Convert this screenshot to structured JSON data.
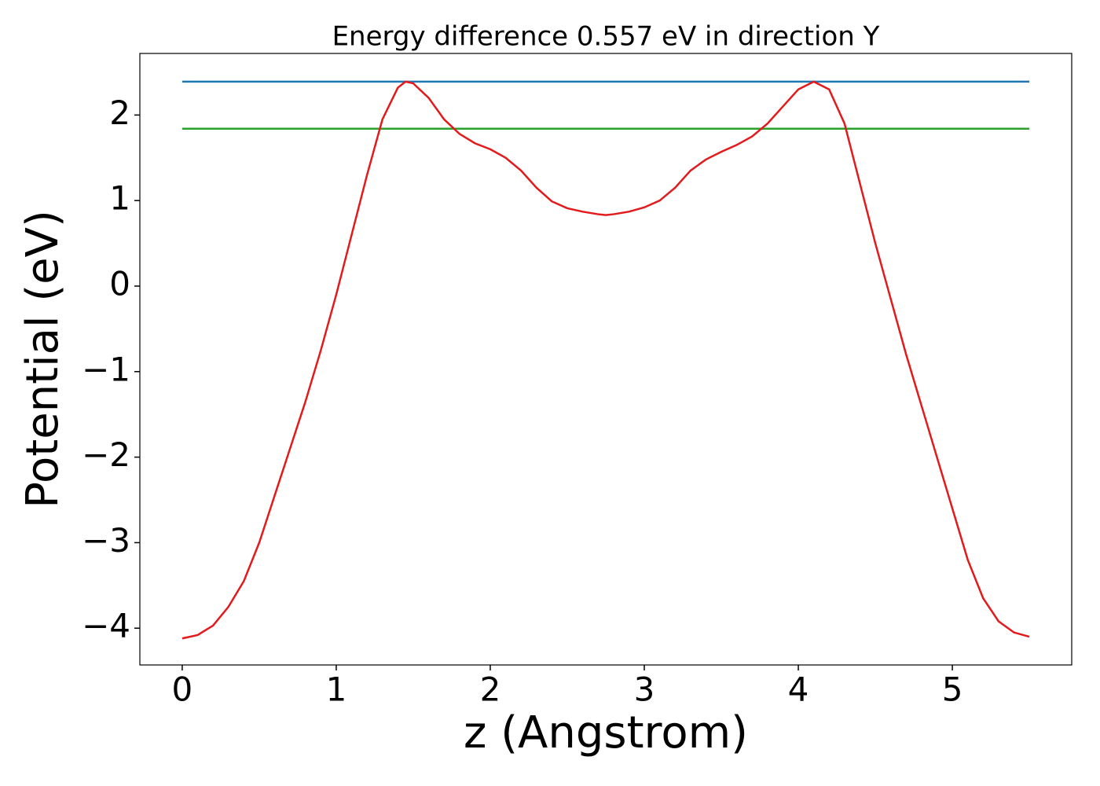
{
  "chart_data": {
    "type": "line",
    "title": "Energy difference 0.557 eV in direction Y",
    "x_label": "z (Angstrom)",
    "y_label": "Potential (eV)",
    "xlim": [
      -0.275,
      5.775
    ],
    "ylim": [
      -4.43,
      2.72
    ],
    "xticks": [
      0,
      1,
      2,
      3,
      4,
      5
    ],
    "yticks": [
      {
        "value": -4,
        "label": "−4"
      },
      {
        "value": -3,
        "label": "−3"
      },
      {
        "value": -2,
        "label": "−2"
      },
      {
        "value": -1,
        "label": "−1"
      },
      0,
      1,
      2
    ],
    "grid": false,
    "series": [
      {
        "color": "#1f77b4",
        "x": [
          0,
          5.5
        ],
        "values": [
          2.39,
          2.39
        ]
      },
      {
        "color": "#2ca02c",
        "x": [
          0,
          5.5
        ],
        "values": [
          1.84,
          1.84
        ]
      },
      {
        "color": "#e31a1c",
        "x": [
          0,
          0.1,
          0.2,
          0.3,
          0.4,
          0.5,
          0.6,
          0.7,
          0.8,
          0.9,
          1.0,
          1.1,
          1.2,
          1.3,
          1.4,
          1.45,
          1.5,
          1.6,
          1.7,
          1.8,
          1.9,
          2.0,
          2.1,
          2.2,
          2.3,
          2.4,
          2.5,
          2.6,
          2.7,
          2.75,
          2.8,
          2.9,
          3.0,
          3.1,
          3.2,
          3.3,
          3.4,
          3.5,
          3.6,
          3.7,
          3.8,
          3.9,
          4.0,
          4.1,
          4.2,
          4.3,
          4.4,
          4.5,
          4.6,
          4.7,
          4.8,
          4.9,
          5.0,
          5.1,
          5.2,
          5.3,
          5.4,
          5.5
        ],
        "values": [
          -4.12,
          -4.08,
          -3.97,
          -3.75,
          -3.45,
          -3.0,
          -2.45,
          -1.9,
          -1.35,
          -0.75,
          -0.1,
          0.6,
          1.3,
          1.95,
          2.32,
          2.39,
          2.37,
          2.2,
          1.95,
          1.78,
          1.67,
          1.6,
          1.5,
          1.35,
          1.15,
          0.99,
          0.91,
          0.87,
          0.84,
          0.83,
          0.84,
          0.87,
          0.92,
          1.0,
          1.15,
          1.35,
          1.48,
          1.57,
          1.65,
          1.75,
          1.9,
          2.1,
          2.3,
          2.39,
          2.3,
          1.9,
          1.2,
          0.5,
          -0.15,
          -0.8,
          -1.4,
          -2.0,
          -2.6,
          -3.2,
          -3.65,
          -3.92,
          -4.05,
          -4.1
        ]
      }
    ]
  }
}
